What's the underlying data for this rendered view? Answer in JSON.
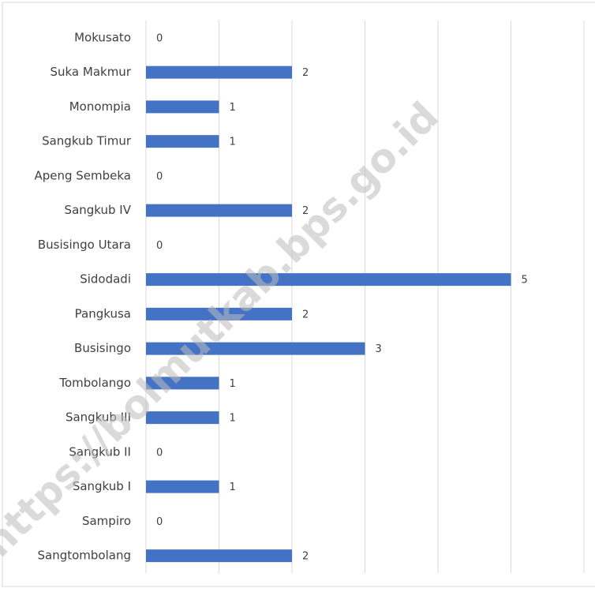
{
  "chart_data": {
    "type": "bar",
    "orientation": "horizontal",
    "categories": [
      "Mokusato",
      "Suka Makmur",
      "Monompia",
      "Sangkub Timur",
      "Apeng Sembeka",
      "Sangkub IV",
      "Busisingo Utara",
      "Sidodadi",
      "Pangkusa",
      "Busisingo",
      "Tombolango",
      "Sangkub III",
      "Sangkub II",
      "Sangkub I",
      "Sampiro",
      "Sangtombolang"
    ],
    "values": [
      0,
      2,
      1,
      1,
      0,
      2,
      0,
      5,
      2,
      3,
      1,
      1,
      0,
      1,
      0,
      2
    ],
    "color": "#4472c4",
    "xlim": [
      0,
      6
    ],
    "xticks": [
      0,
      1,
      2,
      3,
      4,
      5,
      6
    ],
    "grid": true,
    "watermark": "https://bolmutkab.bps.go.id"
  }
}
